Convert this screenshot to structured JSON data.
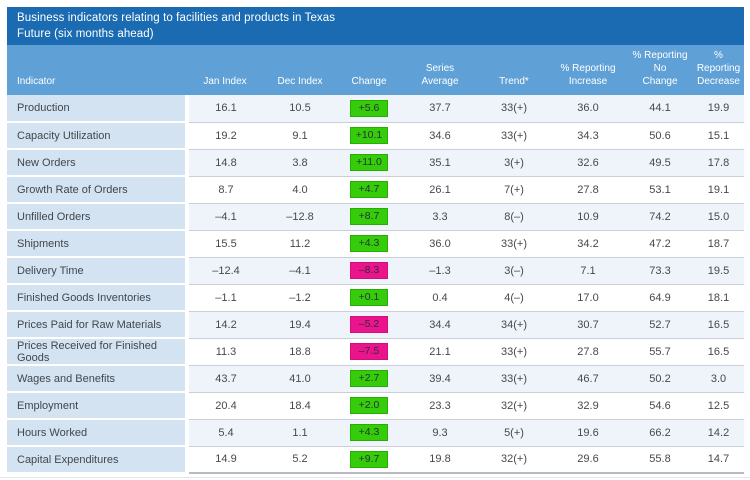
{
  "chart_data": {
    "type": "table",
    "title": "Business indicators relating to facilities and products in Texas",
    "subtitle": "Future (six months ahead)",
    "columns": [
      "Indicator",
      "Jan Index",
      "Dec Index",
      "Change",
      "Series\nAverage",
      "Trend*",
      "% Reporting\nIncrease",
      "% Reporting No\nChange",
      "%\nReporting\nDecrease"
    ],
    "rows": [
      {
        "indicator": "Production",
        "jan_index": "16.1",
        "dec_index": "10.5",
        "change": "+5.6",
        "change_direction": "up",
        "series_average": "37.7",
        "trend": "33(+)",
        "pct_increase": "36.0",
        "pct_no_change": "44.1",
        "pct_decrease": "19.9"
      },
      {
        "indicator": "Capacity Utilization",
        "jan_index": "19.2",
        "dec_index": "9.1",
        "change": "+10.1",
        "change_direction": "up",
        "series_average": "34.6",
        "trend": "33(+)",
        "pct_increase": "34.3",
        "pct_no_change": "50.6",
        "pct_decrease": "15.1"
      },
      {
        "indicator": "New Orders",
        "jan_index": "14.8",
        "dec_index": "3.8",
        "change": "+11.0",
        "change_direction": "up",
        "series_average": "35.1",
        "trend": "3(+)",
        "pct_increase": "32.6",
        "pct_no_change": "49.5",
        "pct_decrease": "17.8"
      },
      {
        "indicator": "Growth Rate of Orders",
        "jan_index": "8.7",
        "dec_index": "4.0",
        "change": "+4.7",
        "change_direction": "up",
        "series_average": "26.1",
        "trend": "7(+)",
        "pct_increase": "27.8",
        "pct_no_change": "53.1",
        "pct_decrease": "19.1"
      },
      {
        "indicator": "Unfilled Orders",
        "jan_index": "–4.1",
        "dec_index": "–12.8",
        "change": "+8.7",
        "change_direction": "up",
        "series_average": "3.3",
        "trend": "8(–)",
        "pct_increase": "10.9",
        "pct_no_change": "74.2",
        "pct_decrease": "15.0"
      },
      {
        "indicator": "Shipments",
        "jan_index": "15.5",
        "dec_index": "11.2",
        "change": "+4.3",
        "change_direction": "up",
        "series_average": "36.0",
        "trend": "33(+)",
        "pct_increase": "34.2",
        "pct_no_change": "47.2",
        "pct_decrease": "18.7"
      },
      {
        "indicator": "Delivery Time",
        "jan_index": "–12.4",
        "dec_index": "–4.1",
        "change": "–8.3",
        "change_direction": "down",
        "series_average": "–1.3",
        "trend": "3(–)",
        "pct_increase": "7.1",
        "pct_no_change": "73.3",
        "pct_decrease": "19.5"
      },
      {
        "indicator": "Finished Goods Inventories",
        "jan_index": "–1.1",
        "dec_index": "–1.2",
        "change": "+0.1",
        "change_direction": "up",
        "series_average": "0.4",
        "trend": "4(–)",
        "pct_increase": "17.0",
        "pct_no_change": "64.9",
        "pct_decrease": "18.1"
      },
      {
        "indicator": "Prices Paid for Raw Materials",
        "jan_index": "14.2",
        "dec_index": "19.4",
        "change": "–5.2",
        "change_direction": "down",
        "series_average": "34.4",
        "trend": "34(+)",
        "pct_increase": "30.7",
        "pct_no_change": "52.7",
        "pct_decrease": "16.5"
      },
      {
        "indicator": "Prices Received for Finished Goods",
        "jan_index": "11.3",
        "dec_index": "18.8",
        "change": "–7.5",
        "change_direction": "down",
        "series_average": "21.1",
        "trend": "33(+)",
        "pct_increase": "27.8",
        "pct_no_change": "55.7",
        "pct_decrease": "16.5"
      },
      {
        "indicator": "Wages and Benefits",
        "jan_index": "43.7",
        "dec_index": "41.0",
        "change": "+2.7",
        "change_direction": "up",
        "series_average": "39.4",
        "trend": "33(+)",
        "pct_increase": "46.7",
        "pct_no_change": "50.2",
        "pct_decrease": "3.0"
      },
      {
        "indicator": "Employment",
        "jan_index": "20.4",
        "dec_index": "18.4",
        "change": "+2.0",
        "change_direction": "up",
        "series_average": "23.3",
        "trend": "32(+)",
        "pct_increase": "32.9",
        "pct_no_change": "54.6",
        "pct_decrease": "12.5"
      },
      {
        "indicator": "Hours Worked",
        "jan_index": "5.4",
        "dec_index": "1.1",
        "change": "+4.3",
        "change_direction": "up",
        "series_average": "9.3",
        "trend": "5(+)",
        "pct_increase": "19.6",
        "pct_no_change": "66.2",
        "pct_decrease": "14.2"
      },
      {
        "indicator": "Capital Expenditures",
        "jan_index": "14.9",
        "dec_index": "5.2",
        "change": "+9.7",
        "change_direction": "up",
        "series_average": "19.8",
        "trend": "32(+)",
        "pct_increase": "29.6",
        "pct_no_change": "55.8",
        "pct_decrease": "14.7"
      }
    ],
    "layout": {
      "legend": "none",
      "grid": "horizontal row separators",
      "change_badge_positive_color_meaning": "index improved vs prior month",
      "change_badge_negative_color_meaning": "index worsened vs prior month"
    }
  },
  "colors": {
    "header_bg": "#1b6bb3",
    "subheader_bg": "#5fa0d7",
    "header_text": "#ffffff",
    "indicator_cell_bg": "#d4e3f1",
    "indicator_text": "#3f474e",
    "row_tint": "#eef4fa",
    "row_white": "#ffffff",
    "text": "#45494d",
    "separator": "#c9cfd4",
    "table_bottom_rule": "#b6bcc2",
    "hairline": "#e2e5e8",
    "positive_bg": "#35cd0a",
    "positive_border": "#28ad05",
    "negative_bg": "#eb148c",
    "negative_border": "#d1107a",
    "badge_text": "#2a3038"
  }
}
